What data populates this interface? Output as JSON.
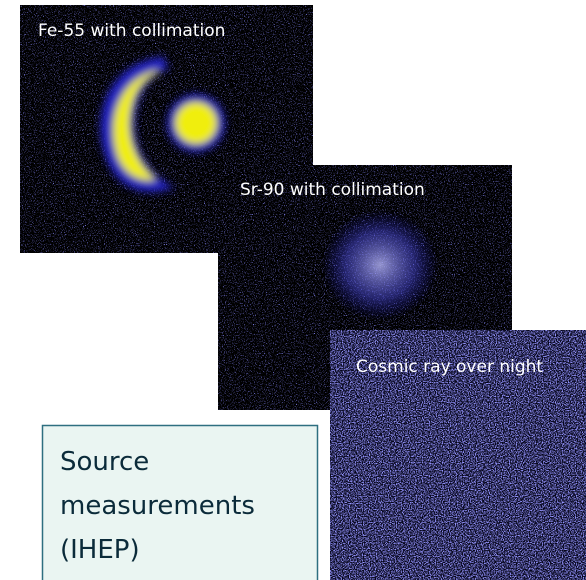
{
  "panels": [
    {
      "caption": "Fe-55 with collimation"
    },
    {
      "caption": "Sr-90 with collimation"
    },
    {
      "caption": "Cosmic ray over night"
    }
  ],
  "label_box": {
    "lines": [
      "Source",
      "measurements",
      "(IHEP)"
    ]
  }
}
